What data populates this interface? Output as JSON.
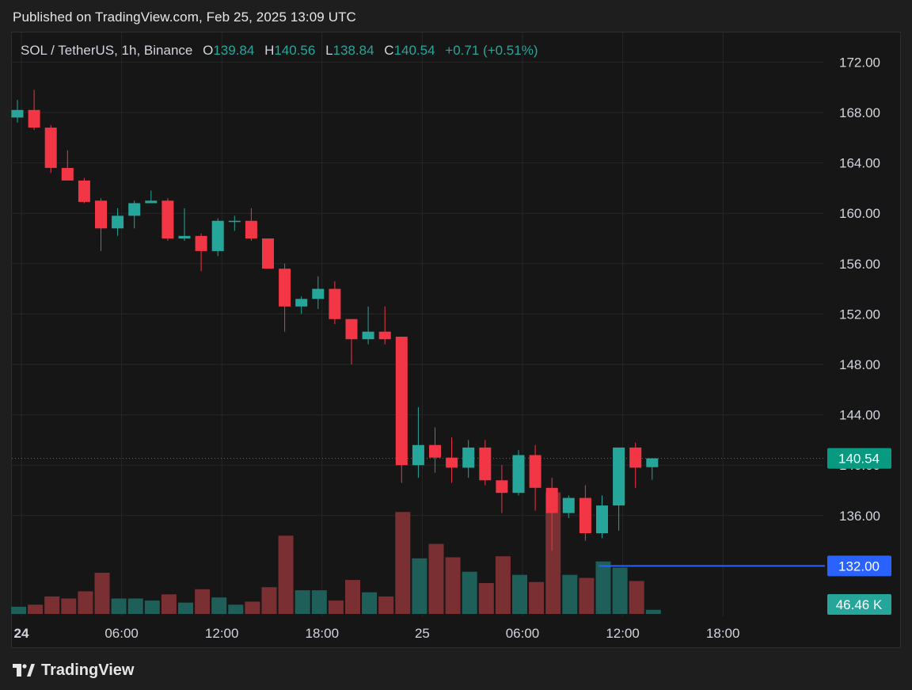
{
  "header": {
    "published_text": "Published on TradingView.com, Feb 25, 2025 13:09 UTC"
  },
  "legend": {
    "symbol": "SOL / TetherUS, 1h, Binance",
    "open_label": "O",
    "open_value": "139.84",
    "high_label": "H",
    "high_value": "140.56",
    "low_label": "L",
    "low_value": "138.84",
    "close_label": "C",
    "close_value": "140.54",
    "change": "+0.71 (+0.51%)"
  },
  "footer": {
    "brand": "TradingView"
  },
  "colors": {
    "up": "#26a69a",
    "down": "#f23645",
    "up_volume": "#1f5f5a",
    "down_volume": "#7a2f33",
    "grid": "#262626",
    "axis_text": "#d1d4dc",
    "horizontal_line": "#2962ff",
    "price_badge": "#089981",
    "volume_badge": "#26a69a",
    "line_badge": "#2962ff"
  },
  "chart_data": {
    "type": "candlestick",
    "symbol": "SOL / TetherUS",
    "interval": "1h",
    "exchange": "Binance",
    "y_ticks": [
      136,
      140,
      144,
      148,
      152,
      156,
      160,
      164,
      168,
      172
    ],
    "y_tick_labels": [
      "136.00",
      "140.00",
      "144.00",
      "148.00",
      "152.00",
      "156.00",
      "160.00",
      "164.00",
      "168.00",
      "172.00"
    ],
    "x_ticks": [
      {
        "index": 0,
        "label": "24",
        "bold": true
      },
      {
        "index": 6,
        "label": "06:00",
        "bold": false
      },
      {
        "index": 12,
        "label": "12:00",
        "bold": false
      },
      {
        "index": 18,
        "label": "18:00",
        "bold": false
      },
      {
        "index": 24,
        "label": "25",
        "bold": false
      },
      {
        "index": 30,
        "label": "06:00",
        "bold": false
      },
      {
        "index": 36,
        "label": "12:00",
        "bold": false
      },
      {
        "index": 42,
        "label": "18:00",
        "bold": false
      }
    ],
    "candles": [
      {
        "o": 167.6,
        "h": 169.0,
        "l": 167.2,
        "c": 168.2,
        "v": 7
      },
      {
        "o": 168.2,
        "h": 169.8,
        "l": 166.6,
        "c": 166.8,
        "v": 9
      },
      {
        "o": 166.8,
        "h": 167.0,
        "l": 163.2,
        "c": 163.6,
        "v": 17
      },
      {
        "o": 163.6,
        "h": 165.0,
        "l": 162.6,
        "c": 162.6,
        "v": 15
      },
      {
        "o": 162.6,
        "h": 162.8,
        "l": 160.8,
        "c": 160.9,
        "v": 22
      },
      {
        "o": 161.0,
        "h": 161.2,
        "l": 157.0,
        "c": 158.8,
        "v": 40
      },
      {
        "o": 158.8,
        "h": 160.4,
        "l": 158.2,
        "c": 159.8,
        "v": 15
      },
      {
        "o": 159.8,
        "h": 161.0,
        "l": 158.8,
        "c": 160.8,
        "v": 15
      },
      {
        "o": 160.8,
        "h": 161.8,
        "l": 160.8,
        "c": 161.0,
        "v": 13
      },
      {
        "o": 161.0,
        "h": 161.2,
        "l": 157.8,
        "c": 158.0,
        "v": 19
      },
      {
        "o": 158.0,
        "h": 160.4,
        "l": 157.8,
        "c": 158.2,
        "v": 11
      },
      {
        "o": 158.2,
        "h": 158.4,
        "l": 155.4,
        "c": 157.0,
        "v": 24
      },
      {
        "o": 157.0,
        "h": 159.6,
        "l": 156.6,
        "c": 159.4,
        "v": 16
      },
      {
        "o": 159.4,
        "h": 159.8,
        "l": 158.6,
        "c": 159.4,
        "v": 9
      },
      {
        "o": 159.4,
        "h": 160.4,
        "l": 157.8,
        "c": 158.0,
        "v": 12
      },
      {
        "o": 158.0,
        "h": 158.0,
        "l": 155.6,
        "c": 155.6,
        "v": 26
      },
      {
        "o": 155.6,
        "h": 156.0,
        "l": 150.6,
        "c": 152.6,
        "v": 76
      },
      {
        "o": 152.6,
        "h": 153.4,
        "l": 152.0,
        "c": 153.2,
        "v": 23
      },
      {
        "o": 153.2,
        "h": 155.0,
        "l": 152.4,
        "c": 154.0,
        "v": 23
      },
      {
        "o": 154.0,
        "h": 154.6,
        "l": 151.2,
        "c": 151.6,
        "v": 13
      },
      {
        "o": 151.6,
        "h": 151.6,
        "l": 148.0,
        "c": 150.0,
        "v": 33
      },
      {
        "o": 150.0,
        "h": 152.6,
        "l": 149.6,
        "c": 150.6,
        "v": 21
      },
      {
        "o": 150.6,
        "h": 152.6,
        "l": 149.6,
        "c": 150.0,
        "v": 17
      },
      {
        "o": 150.2,
        "h": 150.2,
        "l": 138.6,
        "c": 140.0,
        "v": 99
      },
      {
        "o": 140.0,
        "h": 144.6,
        "l": 139.0,
        "c": 141.6,
        "v": 54
      },
      {
        "o": 141.6,
        "h": 143.0,
        "l": 139.4,
        "c": 140.6,
        "v": 68
      },
      {
        "o": 140.6,
        "h": 142.2,
        "l": 138.6,
        "c": 139.8,
        "v": 55
      },
      {
        "o": 139.8,
        "h": 142.0,
        "l": 139.0,
        "c": 141.4,
        "v": 41
      },
      {
        "o": 141.4,
        "h": 142.0,
        "l": 138.4,
        "c": 138.8,
        "v": 30
      },
      {
        "o": 138.8,
        "h": 140.0,
        "l": 136.2,
        "c": 137.8,
        "v": 56
      },
      {
        "o": 137.8,
        "h": 141.2,
        "l": 137.6,
        "c": 140.8,
        "v": 38
      },
      {
        "o": 140.8,
        "h": 141.6,
        "l": 136.4,
        "c": 138.2,
        "v": 31
      },
      {
        "o": 138.2,
        "h": 139.0,
        "l": 133.2,
        "c": 136.2,
        "v": 118
      },
      {
        "o": 136.2,
        "h": 137.6,
        "l": 135.8,
        "c": 137.4,
        "v": 38
      },
      {
        "o": 137.4,
        "h": 138.4,
        "l": 134.0,
        "c": 134.6,
        "v": 35
      },
      {
        "o": 134.6,
        "h": 137.6,
        "l": 134.2,
        "c": 136.8,
        "v": 51
      },
      {
        "o": 136.8,
        "h": 141.4,
        "l": 134.8,
        "c": 141.4,
        "v": 45
      },
      {
        "o": 141.4,
        "h": 141.8,
        "l": 138.2,
        "c": 139.8,
        "v": 32
      },
      {
        "o": 139.84,
        "h": 140.56,
        "l": 138.84,
        "c": 140.54,
        "v": 4
      }
    ],
    "last_price": 140.54,
    "last_price_label": "140.54",
    "horizontal_line": {
      "value": 132.0,
      "label": "132.00",
      "start_index": 35
    },
    "volume_label": "46.46 K",
    "grid": true
  }
}
